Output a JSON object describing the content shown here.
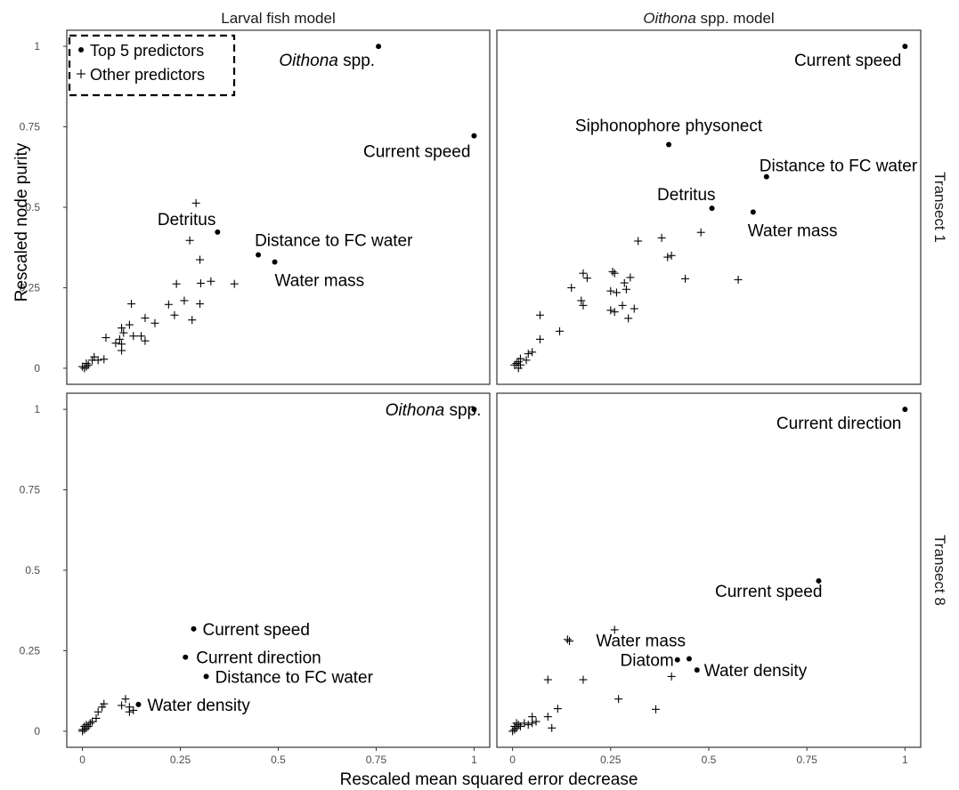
{
  "chart_data": {
    "type": "scatter",
    "xlabel": "Rescaled mean squared error decrease",
    "ylabel": "Rescaled node purity",
    "xlim": [
      0,
      1
    ],
    "ylim": [
      0,
      1
    ],
    "x_ticks": [
      0,
      0.25,
      0.5,
      0.75,
      1
    ],
    "y_ticks": [
      0,
      0.25,
      0.5,
      0.75,
      1
    ],
    "x_tick_labels": [
      "0",
      "0.25",
      "0.5",
      "0.75",
      "1"
    ],
    "y_tick_labels": [
      "0",
      "0.25",
      "0.5",
      "0.75",
      "1"
    ],
    "grid": false,
    "column_strips": [
      {
        "parts": [
          {
            "text": "Larval fish model",
            "italic": false
          }
        ]
      },
      {
        "parts": [
          {
            "text": "Oithona",
            "italic": true
          },
          {
            "text": " spp. model",
            "italic": false
          }
        ]
      }
    ],
    "row_strips": [
      "Transect 1",
      "Transect 8"
    ],
    "legend": {
      "placement": "top-left",
      "entries": [
        {
          "symbol": "dot",
          "label": "Top 5 predictors"
        },
        {
          "symbol": "plus",
          "label": "Other predictors"
        }
      ]
    },
    "panels": [
      {
        "row": 0,
        "col": 0,
        "top5": [
          {
            "x": 0.756,
            "y": 1.0,
            "parts": [
              {
                "text": "Oithona",
                "italic": true
              },
              {
                "text": " spp.",
                "italic": false
              }
            ],
            "anchor": "end"
          },
          {
            "x": 1.0,
            "y": 0.722,
            "parts": [
              {
                "text": "Current speed",
                "italic": false
              }
            ],
            "anchor": "end"
          },
          {
            "x": 0.345,
            "y": 0.423,
            "parts": [
              {
                "text": "Detritus",
                "italic": false
              }
            ],
            "anchor": "end"
          },
          {
            "x": 0.449,
            "y": 0.352,
            "parts": [
              {
                "text": "Distance to FC water",
                "italic": false
              }
            ],
            "anchor": "start"
          },
          {
            "x": 0.491,
            "y": 0.33,
            "parts": [
              {
                "text": "Water mass",
                "italic": false
              }
            ],
            "anchor": "start"
          }
        ],
        "other": [
          [
            0.29,
            0.513
          ],
          [
            0.274,
            0.397
          ],
          [
            0.3,
            0.337
          ],
          [
            0.24,
            0.262
          ],
          [
            0.302,
            0.264
          ],
          [
            0.328,
            0.27
          ],
          [
            0.388,
            0.262
          ],
          [
            0.26,
            0.21
          ],
          [
            0.3,
            0.2
          ],
          [
            0.22,
            0.198
          ],
          [
            0.235,
            0.165
          ],
          [
            0.28,
            0.15
          ],
          [
            0.125,
            0.2
          ],
          [
            0.15,
            0.1
          ],
          [
            0.16,
            0.156
          ],
          [
            0.185,
            0.14
          ],
          [
            0.16,
            0.085
          ],
          [
            0.13,
            0.1
          ],
          [
            0.12,
            0.135
          ],
          [
            0.1,
            0.125
          ],
          [
            0.105,
            0.11
          ],
          [
            0.095,
            0.09
          ],
          [
            0.1,
            0.075
          ],
          [
            0.085,
            0.078
          ],
          [
            0.1,
            0.055
          ],
          [
            0.06,
            0.095
          ],
          [
            0.055,
            0.028
          ],
          [
            0.04,
            0.025
          ],
          [
            0.03,
            0.035
          ],
          [
            0.025,
            0.025
          ],
          [
            0.015,
            0.01
          ],
          [
            0.01,
            0.005
          ],
          [
            0.005,
            0.0
          ],
          [
            0.01,
            0.015
          ],
          [
            0.0,
            0.005
          ]
        ]
      },
      {
        "row": 0,
        "col": 1,
        "top5": [
          {
            "x": 1.0,
            "y": 1.0,
            "parts": [
              {
                "text": "Current speed",
                "italic": false
              }
            ],
            "anchor": "end"
          },
          {
            "x": 0.398,
            "y": 0.695,
            "parts": [
              {
                "text": "Siphonophore physonect",
                "italic": false
              }
            ],
            "anchor": "middle"
          },
          {
            "x": 0.647,
            "y": 0.595,
            "parts": [
              {
                "text": "Distance to FC water",
                "italic": false
              }
            ],
            "anchor": "start"
          },
          {
            "x": 0.508,
            "y": 0.497,
            "parts": [
              {
                "text": "Detritus",
                "italic": false
              }
            ],
            "anchor": "end"
          },
          {
            "x": 0.613,
            "y": 0.485,
            "parts": [
              {
                "text": "Water mass",
                "italic": false
              }
            ],
            "anchor": "start"
          }
        ],
        "other": [
          [
            0.38,
            0.405
          ],
          [
            0.32,
            0.395
          ],
          [
            0.48,
            0.422
          ],
          [
            0.395,
            0.345
          ],
          [
            0.405,
            0.35
          ],
          [
            0.44,
            0.278
          ],
          [
            0.575,
            0.275
          ],
          [
            0.18,
            0.295
          ],
          [
            0.19,
            0.28
          ],
          [
            0.255,
            0.3
          ],
          [
            0.26,
            0.295
          ],
          [
            0.3,
            0.282
          ],
          [
            0.285,
            0.265
          ],
          [
            0.15,
            0.25
          ],
          [
            0.25,
            0.24
          ],
          [
            0.265,
            0.235
          ],
          [
            0.29,
            0.245
          ],
          [
            0.175,
            0.21
          ],
          [
            0.18,
            0.195
          ],
          [
            0.28,
            0.195
          ],
          [
            0.31,
            0.185
          ],
          [
            0.25,
            0.18
          ],
          [
            0.26,
            0.175
          ],
          [
            0.295,
            0.155
          ],
          [
            0.12,
            0.115
          ],
          [
            0.07,
            0.165
          ],
          [
            0.07,
            0.09
          ],
          [
            0.05,
            0.05
          ],
          [
            0.04,
            0.045
          ],
          [
            0.035,
            0.025
          ],
          [
            0.02,
            0.03
          ],
          [
            0.015,
            0.02
          ],
          [
            0.02,
            0.01
          ],
          [
            0.01,
            0.015
          ],
          [
            0.005,
            0.01
          ],
          [
            0.015,
            0.0
          ]
        ]
      },
      {
        "row": 1,
        "col": 0,
        "top5": [
          {
            "x": 1.0,
            "y": 1.0,
            "parts": [
              {
                "text": "Oithona",
                "italic": true
              },
              {
                "text": " spp.",
                "italic": false
              }
            ],
            "anchor": "end"
          },
          {
            "x": 0.284,
            "y": 0.318,
            "parts": [
              {
                "text": "Current speed",
                "italic": false
              }
            ],
            "anchor": "start"
          },
          {
            "x": 0.263,
            "y": 0.23,
            "parts": [
              {
                "text": "Current direction",
                "italic": false
              }
            ],
            "anchor": "start"
          },
          {
            "x": 0.316,
            "y": 0.17,
            "parts": [
              {
                "text": "Distance to FC water",
                "italic": false
              }
            ],
            "anchor": "start"
          },
          {
            "x": 0.143,
            "y": 0.083,
            "parts": [
              {
                "text": "Water density",
                "italic": false
              }
            ],
            "anchor": "start"
          }
        ],
        "other": [
          [
            0.11,
            0.1
          ],
          [
            0.12,
            0.075
          ],
          [
            0.13,
            0.065
          ],
          [
            0.1,
            0.08
          ],
          [
            0.12,
            0.06
          ],
          [
            0.055,
            0.085
          ],
          [
            0.05,
            0.075
          ],
          [
            0.04,
            0.06
          ],
          [
            0.035,
            0.04
          ],
          [
            0.025,
            0.03
          ],
          [
            0.02,
            0.025
          ],
          [
            0.015,
            0.015
          ],
          [
            0.01,
            0.02
          ],
          [
            0.01,
            0.01
          ],
          [
            0.005,
            0.005
          ],
          [
            0.0,
            0.0
          ],
          [
            0.0,
            0.005
          ],
          [
            0.005,
            0.015
          ]
        ]
      },
      {
        "row": 1,
        "col": 1,
        "top5": [
          {
            "x": 1.0,
            "y": 1.0,
            "parts": [
              {
                "text": "Current direction",
                "italic": false
              }
            ],
            "anchor": "end"
          },
          {
            "x": 0.78,
            "y": 0.467,
            "parts": [
              {
                "text": "Current speed",
                "italic": false
              }
            ],
            "anchor": "end"
          },
          {
            "x": 0.45,
            "y": 0.225,
            "parts": [
              {
                "text": "Water mass",
                "italic": false
              }
            ],
            "anchor": "end"
          },
          {
            "x": 0.42,
            "y": 0.222,
            "parts": [
              {
                "text": "Diatom",
                "italic": false
              }
            ],
            "anchor": "end"
          },
          {
            "x": 0.47,
            "y": 0.19,
            "parts": [
              {
                "text": "Water density",
                "italic": false
              }
            ],
            "anchor": "start"
          }
        ],
        "other": [
          [
            0.26,
            0.315
          ],
          [
            0.14,
            0.285
          ],
          [
            0.145,
            0.28
          ],
          [
            0.405,
            0.17
          ],
          [
            0.09,
            0.16
          ],
          [
            0.18,
            0.16
          ],
          [
            0.27,
            0.1
          ],
          [
            0.365,
            0.068
          ],
          [
            0.115,
            0.07
          ],
          [
            0.09,
            0.045
          ],
          [
            0.1,
            0.01
          ],
          [
            0.06,
            0.03
          ],
          [
            0.05,
            0.045
          ],
          [
            0.05,
            0.025
          ],
          [
            0.04,
            0.02
          ],
          [
            0.03,
            0.025
          ],
          [
            0.02,
            0.015
          ],
          [
            0.015,
            0.02
          ],
          [
            0.01,
            0.025
          ],
          [
            0.01,
            0.01
          ],
          [
            0.005,
            0.005
          ],
          [
            0.0,
            0.0
          ],
          [
            0.005,
            0.015
          ]
        ]
      }
    ]
  }
}
